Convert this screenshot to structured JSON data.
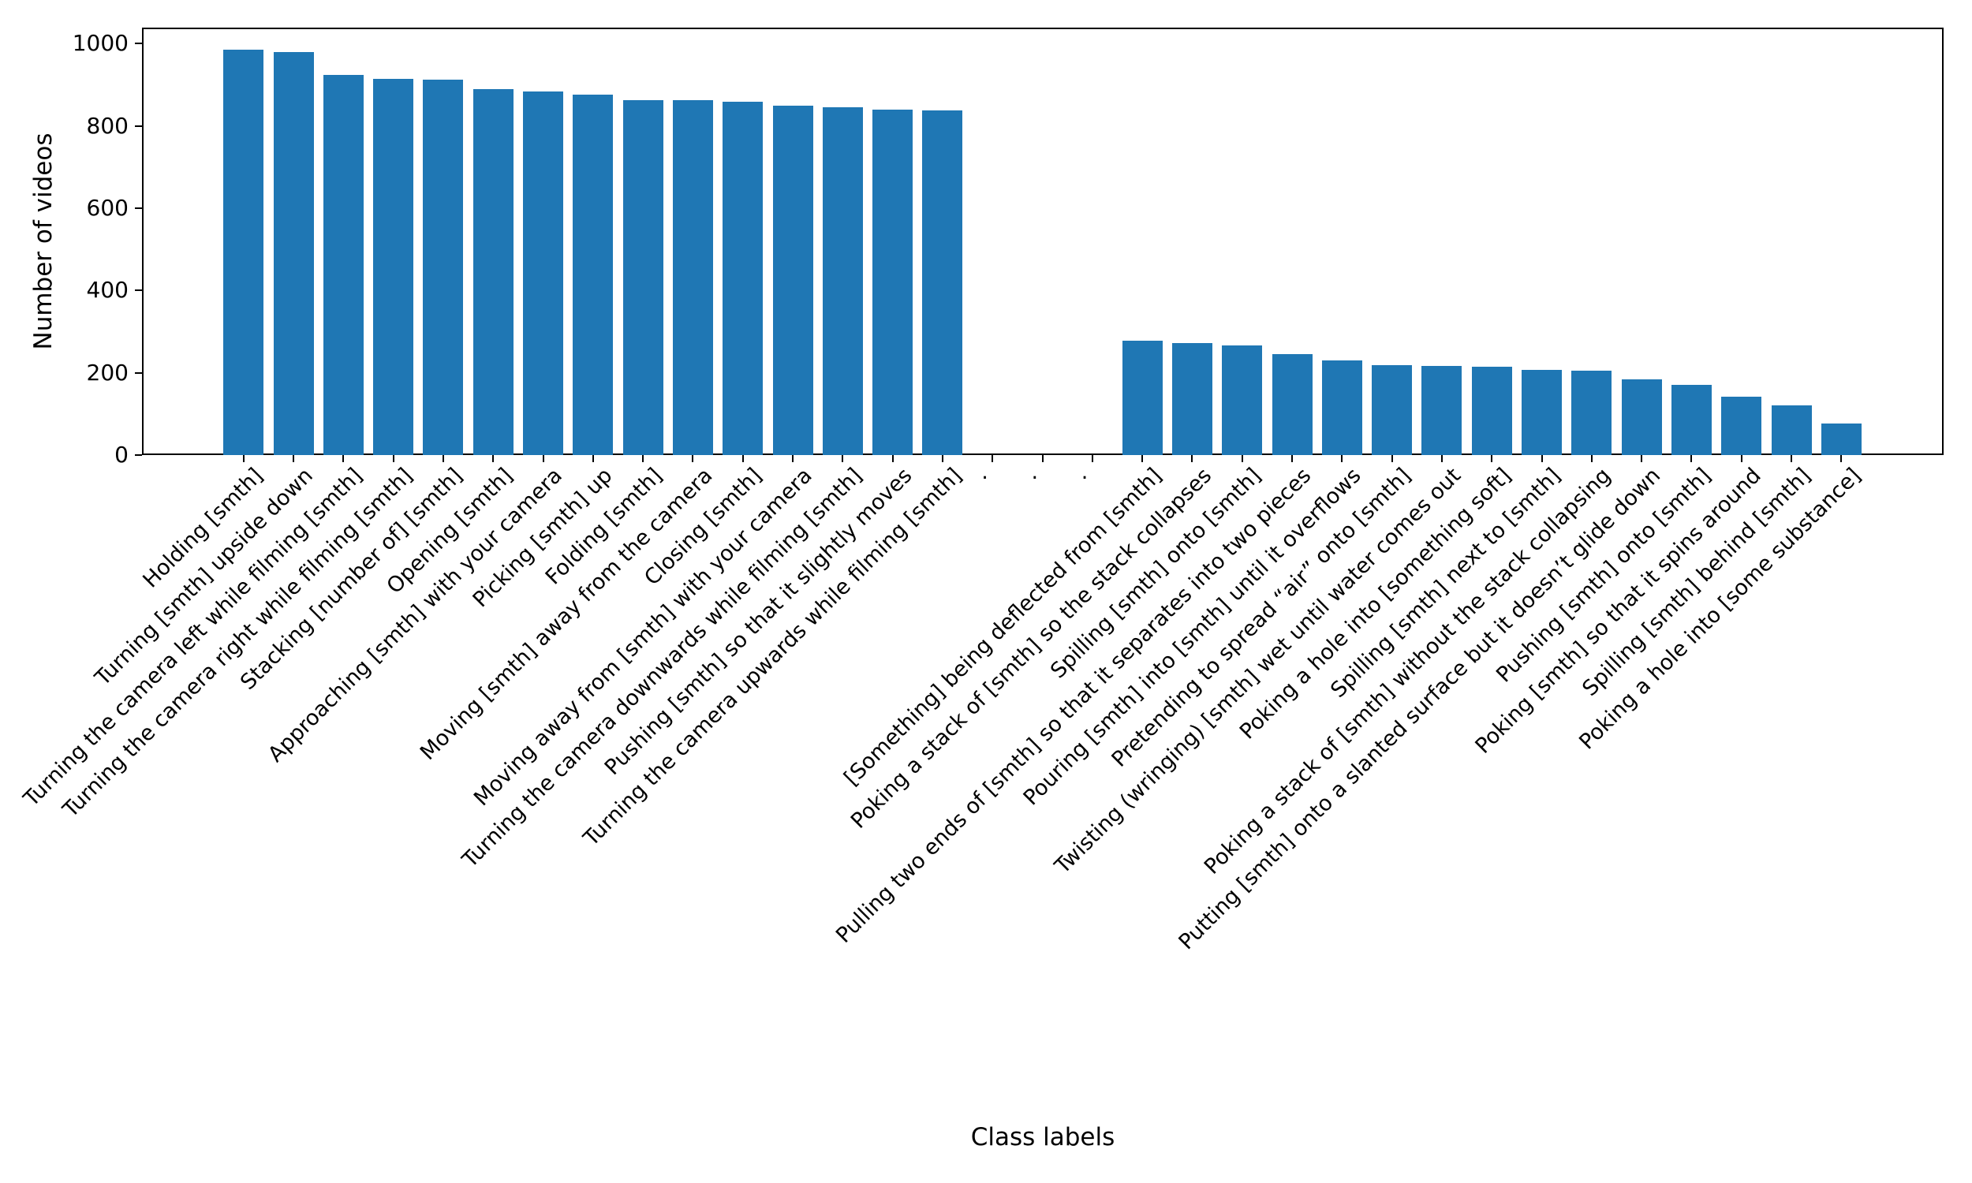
{
  "figure": {
    "ylabel": "Number of videos",
    "xlabel": "Class labels",
    "yticks": [
      0,
      200,
      400,
      600,
      800,
      1000
    ],
    "bar_color": "#1f77b4",
    "axis_color": "#000000",
    "gap_dots": [
      ".",
      ".",
      "."
    ]
  },
  "chart_data": {
    "type": "bar",
    "title": "",
    "xlabel": "Class labels",
    "ylabel": "Number of videos",
    "ylim": [
      0,
      1038
    ],
    "grid": false,
    "legend": false,
    "bar_color": "#1f77b4",
    "note": "Truncated class-frequency distribution; three dot placeholders separate the most frequent 15 classes from the least frequent 15 classes",
    "gap_after_index": 14,
    "gap_labels": [
      ".",
      ".",
      "."
    ],
    "categories": [
      "Holding [smth]",
      "Turning [smth] upside down",
      "Turning the camera left while filming [smth]",
      "Turning the camera right while filming [smth]",
      "Stacking [number of] [smth]",
      "Opening [smth]",
      "Approaching [smth] with your camera",
      "Picking [smth] up",
      "Folding [smth]",
      "Moving [smth] away from the camera",
      "Closing [smth]",
      "Moving away from [smth] with your camera",
      "Turning the camera downwards while filming [smth]",
      "Pushing [smth] so that it slightly moves",
      "Turning the camera upwards while filming [smth]",
      "[Something] being deflected from [smth]",
      "Poking a stack of [smth] so the stack collapses",
      "Spilling [smth] onto [smth]",
      "Pulling two ends of [smth] so that it separates into two pieces",
      "Pouring [smth] into [smth] until it overflows",
      "Pretending to spread “air” onto [smth]",
      "Twisting (wringing) [smth] wet until water comes out",
      "Poking a hole into [something soft]",
      "Spilling [smth] next to [smth]",
      "Poking a stack of [smth] without the stack collapsing",
      "Putting [smth] onto a slanted surface but it doesn’t glide down",
      "Pushing [smth] onto [smth]",
      "Poking [smth] so that it spins around",
      "Spilling [smth] behind [smth]",
      "Poking a hole into [some substance]"
    ],
    "values": [
      986,
      979,
      923,
      914,
      913,
      889,
      883,
      876,
      863,
      862,
      858,
      849,
      845,
      840,
      838,
      277,
      272,
      266,
      245,
      230,
      219,
      217,
      215,
      207,
      206,
      184,
      170,
      142,
      121,
      76
    ]
  }
}
